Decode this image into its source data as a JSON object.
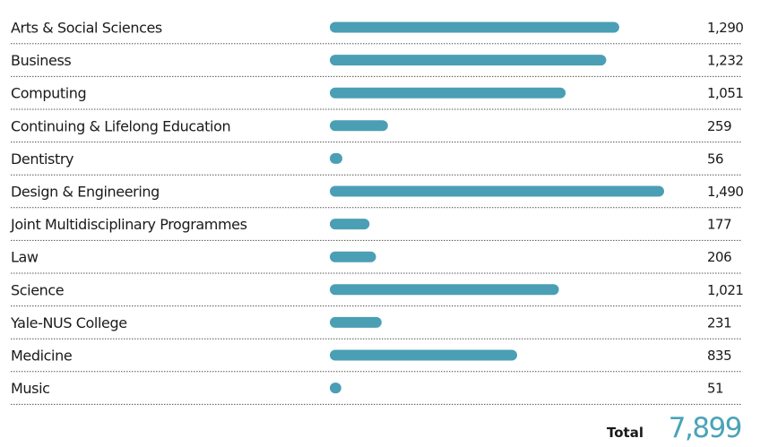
{
  "chart_data": {
    "type": "bar",
    "orientation": "horizontal",
    "categories": [
      "Arts & Social Sciences",
      "Business",
      "Computing",
      "Continuing & Lifelong Education",
      "Dentistry",
      "Design & Engineering",
      "Joint Multidisciplinary Programmes",
      "Law",
      "Science",
      "Yale-NUS College",
      "Medicine",
      "Music"
    ],
    "values": [
      1290,
      1232,
      1051,
      259,
      56,
      1490,
      177,
      206,
      1021,
      231,
      835,
      51
    ],
    "value_labels": [
      "1,290",
      "1,232",
      "1,051",
      "259",
      "56",
      "1,490",
      "177",
      "206",
      "1,021",
      "231",
      "835",
      "51"
    ],
    "total_label": "Total",
    "total_value": "7,899",
    "bar_color": "#4a9fb5",
    "total_color": "#4aa3b8",
    "divider_color": "#555555"
  }
}
